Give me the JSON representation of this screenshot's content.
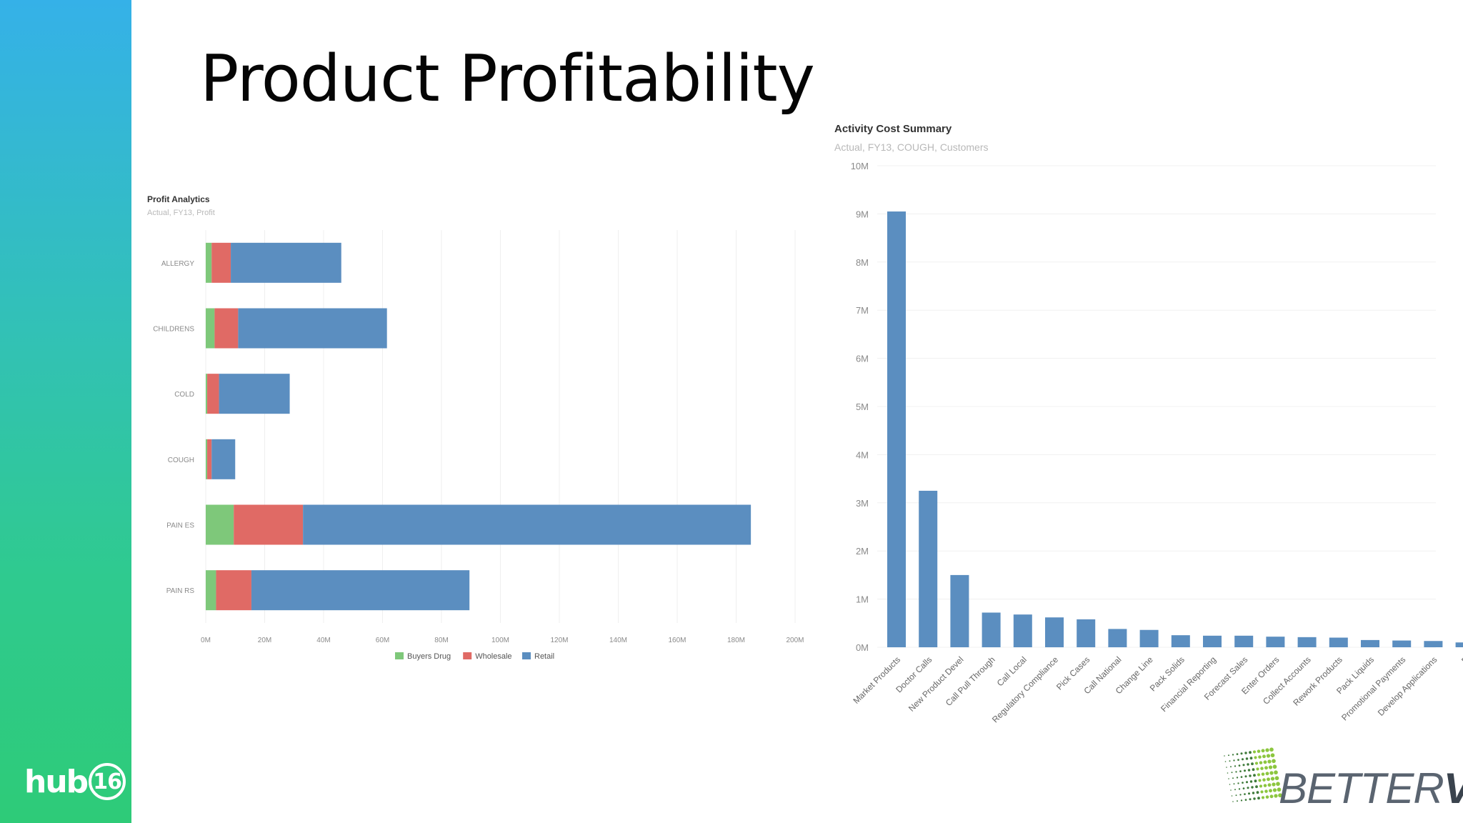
{
  "slide": {
    "title": "Product Profitability",
    "footer_logo_left": {
      "word": "hub",
      "number": "16"
    },
    "footer_logo_right": {
      "part1": "BETTER",
      "part2": "VU"
    }
  },
  "colors": {
    "band_top": "#35b1e8",
    "band_bottom": "#2ecb78",
    "retail": "#5b8ec0",
    "wholesale": "#e06a65",
    "buyers_drug": "#7ec87a"
  },
  "chart_data": [
    {
      "type": "bar",
      "orientation": "horizontal",
      "stacked": true,
      "title": "Profit Analytics",
      "subtitle": "Actual, FY13, Profit",
      "categories": [
        "ALLERGY",
        "CHILDRENS",
        "COLD",
        "COUGH",
        "PAIN ES",
        "PAIN RS"
      ],
      "series": [
        {
          "name": "Buyers Drug",
          "color": "#7ec87a",
          "values": [
            2,
            3,
            0.5,
            0.5,
            9.5,
            3.5
          ]
        },
        {
          "name": "Wholesale",
          "color": "#e06a65",
          "values": [
            6.5,
            8,
            4,
            1.5,
            23.5,
            12
          ]
        },
        {
          "name": "Retail",
          "color": "#5b8ec0",
          "values": [
            37.5,
            50.5,
            24,
            8,
            152,
            74
          ]
        }
      ],
      "xlim": [
        0,
        200
      ],
      "x_ticks": [
        "0M",
        "20M",
        "40M",
        "60M",
        "80M",
        "100M",
        "120M",
        "140M",
        "160M",
        "180M",
        "200M"
      ],
      "legend_position": "bottom",
      "grid": true
    },
    {
      "type": "bar",
      "title": "Activity Cost Summary",
      "subtitle": "Actual, FY13, COUGH, Customers",
      "categories": [
        "Market Products",
        "Doctor Calls",
        "New Product Devel",
        "Call Pull Through",
        "Call Local",
        "Regulatory Compliance",
        "Pick Cases",
        "Call National",
        "Change Line",
        "Pack Solids",
        "Financial Reporting",
        "Forecast Sales",
        "Enter Orders",
        "Collect Accounts",
        "Rework Products",
        "Pack Liquids",
        "Promotional Payments",
        "Develop Applications",
        "P"
      ],
      "values": [
        9.05,
        3.25,
        1.5,
        0.72,
        0.68,
        0.62,
        0.58,
        0.38,
        0.36,
        0.25,
        0.24,
        0.24,
        0.22,
        0.21,
        0.2,
        0.15,
        0.14,
        0.13,
        0.1
      ],
      "ylim": [
        0,
        10
      ],
      "y_ticks": [
        "0M",
        "1M",
        "2M",
        "3M",
        "4M",
        "5M",
        "6M",
        "7M",
        "8M",
        "9M",
        "10M"
      ],
      "color": "#5b8ec0",
      "grid": true
    }
  ]
}
